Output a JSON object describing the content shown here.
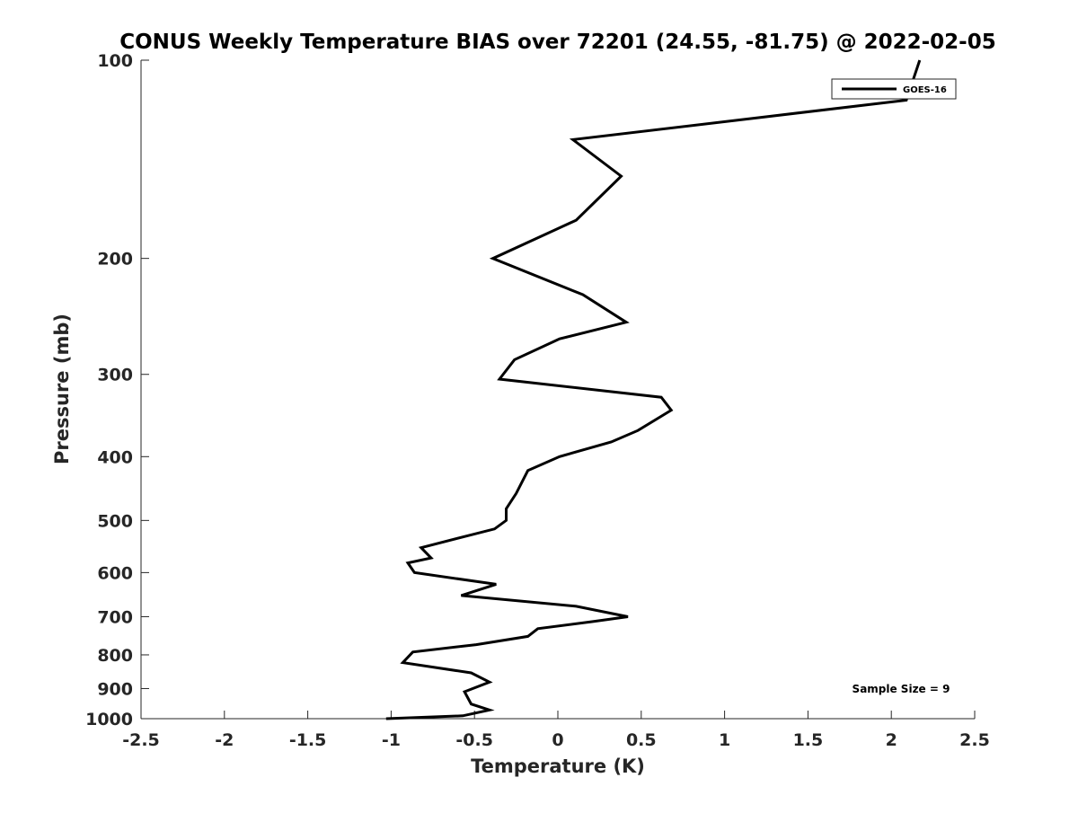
{
  "chart_data": {
    "type": "line",
    "title": "CONUS Weekly Temperature BIAS over 72201 (24.55, -81.75) @ 2022-02-05",
    "xlabel": "Temperature (K)",
    "ylabel": "Pressure (mb)",
    "xlim": [
      -2.5,
      2.5
    ],
    "ylim": [
      100,
      1000
    ],
    "y_scale": "log",
    "y_reversed": true,
    "x_ticks": [
      -2.5,
      -2,
      -1.5,
      -1,
      -0.5,
      0,
      0.5,
      1,
      1.5,
      2,
      2.5
    ],
    "x_tick_labels": [
      "-2.5",
      "-2",
      "-1.5",
      "-1",
      "-0.5",
      "0",
      "0.5",
      "1",
      "1.5",
      "2",
      "2.5"
    ],
    "y_ticks": [
      100,
      200,
      300,
      400,
      500,
      600,
      700,
      800,
      900,
      1000
    ],
    "y_tick_labels": [
      "100",
      "200",
      "300",
      "400",
      "500",
      "600",
      "700",
      "800",
      "900",
      "1000"
    ],
    "grid": false,
    "legend": {
      "location": "top-right"
    },
    "annotation": "Sample Size = 9",
    "series": [
      {
        "name": "GOES-16",
        "color": "#000000",
        "x": [
          2.17,
          2.09,
          0.09,
          0.38,
          0.11,
          -0.39,
          0.15,
          0.41,
          0.01,
          -0.26,
          -0.35,
          0.62,
          0.68,
          0.48,
          0.32,
          0.01,
          -0.18,
          -0.25,
          -0.31,
          -0.31,
          -0.38,
          -0.51,
          -0.82,
          -0.76,
          -0.9,
          -0.86,
          -0.37,
          -0.58,
          0.11,
          0.42,
          0.21,
          -0.12,
          -0.18,
          -0.49,
          -0.87,
          -0.93,
          -0.52,
          -0.41,
          -0.56,
          -0.52,
          -0.41,
          -0.57,
          -1.03
        ],
        "y": [
          100,
          115,
          132,
          150,
          175,
          200,
          227,
          250,
          265,
          285,
          305,
          325,
          340,
          365,
          380,
          400,
          420,
          455,
          480,
          500,
          515,
          525,
          550,
          570,
          580,
          600,
          625,
          650,
          675,
          700,
          712,
          730,
          750,
          772,
          792,
          822,
          852,
          880,
          910,
          950,
          970,
          990,
          1000
        ]
      }
    ]
  }
}
